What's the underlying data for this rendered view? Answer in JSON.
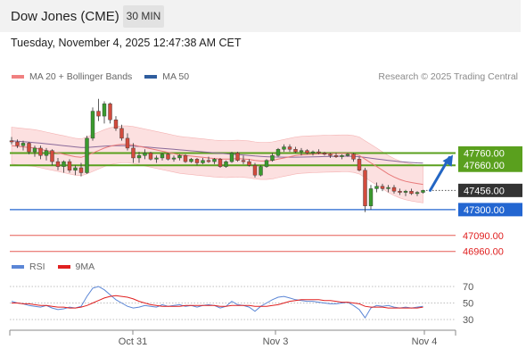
{
  "header": {
    "instrument": "Dow Jones (CME)",
    "period": "30 MIN"
  },
  "subtitle": "Tuesday, November 4, 2025 12:47:38 AM CET",
  "legend": {
    "items": [
      {
        "label": "MA 20 + Bollinger Bands",
        "color": "#f08080"
      },
      {
        "label": "MA 50",
        "color": "#2f5d9e"
      }
    ],
    "credit": "Research © 2025 Trading Central"
  },
  "rsi_legend": {
    "items": [
      {
        "label": "RSI",
        "color": "#5b86d6"
      },
      {
        "label": "9MA",
        "color": "#e02020"
      }
    ]
  },
  "colors": {
    "up": "#3a9a2e",
    "down": "#d24b3d",
    "resistance": "#5aa01e",
    "support": "#2366d1",
    "target": "#e55c55",
    "current": "#333333",
    "band": "#fbd6d6",
    "arrow": "#2366c4"
  },
  "price_labels": [
    {
      "text": "47760.00",
      "kind": "resistance"
    },
    {
      "text": "47660.00",
      "kind": "resistance"
    },
    {
      "text": "47456.00",
      "kind": "current"
    },
    {
      "text": "47300.00",
      "kind": "support"
    },
    {
      "text": "47090.00",
      "kind": "target"
    },
    {
      "text": "46960.00",
      "kind": "target"
    }
  ],
  "chart_data": [
    {
      "type": "candlestick",
      "title": "Dow Jones (CME) 30 MIN",
      "x_tick_labels": [
        "Oct 31",
        "Nov 3",
        "Nov 4"
      ],
      "ylim": [
        46900,
        48300
      ],
      "current_price": 47456,
      "resistance_levels": [
        47760,
        47660
      ],
      "support_levels": [
        47300
      ],
      "target_levels": [
        47090,
        46960
      ],
      "bias": "bullish",
      "ohlc": [
        [
          47860,
          47890,
          47830,
          47850
        ],
        [
          47850,
          47870,
          47800,
          47820
        ],
        [
          47820,
          47860,
          47780,
          47840
        ],
        [
          47840,
          47850,
          47750,
          47770
        ],
        [
          47770,
          47820,
          47730,
          47800
        ],
        [
          47800,
          47820,
          47710,
          47740
        ],
        [
          47740,
          47800,
          47700,
          47780
        ],
        [
          47780,
          47790,
          47660,
          47690
        ],
        [
          47690,
          47720,
          47620,
          47650
        ],
        [
          47650,
          47700,
          47600,
          47690
        ],
        [
          47690,
          47710,
          47600,
          47620
        ],
        [
          47620,
          47660,
          47580,
          47640
        ],
        [
          47640,
          47680,
          47570,
          47600
        ],
        [
          47600,
          47900,
          47590,
          47880
        ],
        [
          47880,
          48130,
          47860,
          48100
        ],
        [
          48100,
          48200,
          48020,
          48060
        ],
        [
          48060,
          48180,
          48000,
          48160
        ],
        [
          48160,
          48170,
          48000,
          48030
        ],
        [
          48030,
          48060,
          47940,
          47960
        ],
        [
          47960,
          47990,
          47860,
          47880
        ],
        [
          47880,
          47920,
          47780,
          47800
        ],
        [
          47800,
          47840,
          47680,
          47720
        ],
        [
          47720,
          47770,
          47680,
          47740
        ],
        [
          47740,
          47790,
          47710,
          47760
        ],
        [
          47760,
          47770,
          47700,
          47710
        ],
        [
          47710,
          47740,
          47680,
          47720
        ],
        [
          47720,
          47760,
          47700,
          47750
        ],
        [
          47750,
          47760,
          47700,
          47710
        ],
        [
          47710,
          47740,
          47690,
          47720
        ],
        [
          47720,
          47750,
          47700,
          47740
        ],
        [
          47740,
          47750,
          47680,
          47690
        ],
        [
          47690,
          47720,
          47680,
          47710
        ],
        [
          47710,
          47720,
          47660,
          47680
        ],
        [
          47680,
          47720,
          47670,
          47700
        ],
        [
          47700,
          47730,
          47680,
          47690
        ],
        [
          47690,
          47720,
          47670,
          47710
        ],
        [
          47710,
          47720,
          47640,
          47650
        ],
        [
          47650,
          47700,
          47640,
          47690
        ],
        [
          47690,
          47770,
          47680,
          47760
        ],
        [
          47760,
          47770,
          47690,
          47700
        ],
        [
          47700,
          47740,
          47670,
          47690
        ],
        [
          47690,
          47710,
          47650,
          47660
        ],
        [
          47660,
          47680,
          47560,
          47580
        ],
        [
          47580,
          47660,
          47570,
          47650
        ],
        [
          47650,
          47710,
          47640,
          47700
        ],
        [
          47700,
          47760,
          47690,
          47740
        ],
        [
          47740,
          47800,
          47730,
          47790
        ],
        [
          47790,
          47830,
          47770,
          47810
        ],
        [
          47810,
          47830,
          47770,
          47790
        ],
        [
          47790,
          47810,
          47760,
          47770
        ],
        [
          47770,
          47800,
          47740,
          47780
        ],
        [
          47780,
          47790,
          47750,
          47760
        ],
        [
          47760,
          47780,
          47740,
          47770
        ],
        [
          47770,
          47790,
          47750,
          47760
        ],
        [
          47760,
          47770,
          47740,
          47750
        ],
        [
          47750,
          47760,
          47720,
          47740
        ],
        [
          47740,
          47760,
          47720,
          47730
        ],
        [
          47730,
          47750,
          47710,
          47740
        ],
        [
          47740,
          47760,
          47730,
          47750
        ],
        [
          47750,
          47760,
          47690,
          47710
        ],
        [
          47710,
          47730,
          47610,
          47620
        ],
        [
          47620,
          47640,
          47280,
          47330
        ],
        [
          47330,
          47500,
          47300,
          47470
        ],
        [
          47470,
          47520,
          47440,
          47490
        ],
        [
          47490,
          47510,
          47450,
          47470
        ],
        [
          47470,
          47500,
          47440,
          47480
        ],
        [
          47480,
          47500,
          47430,
          47450
        ],
        [
          47450,
          47470,
          47420,
          47440
        ],
        [
          47440,
          47460,
          47410,
          47450
        ],
        [
          47450,
          47470,
          47420,
          47430
        ],
        [
          47430,
          47450,
          47410,
          47440
        ],
        [
          47440,
          47460,
          47430,
          47456
        ]
      ],
      "ma20": [
        47820,
        47815,
        47810,
        47805,
        47800,
        47790,
        47780,
        47770,
        47760,
        47750,
        47740,
        47730,
        47725,
        47740,
        47760,
        47780,
        47800,
        47815,
        47825,
        47830,
        47830,
        47825,
        47815,
        47805,
        47795,
        47785,
        47775,
        47765,
        47755,
        47745,
        47740,
        47735,
        47730,
        47725,
        47720,
        47715,
        47712,
        47710,
        47712,
        47715,
        47712,
        47708,
        47700,
        47695,
        47695,
        47700,
        47710,
        47720,
        47730,
        47740,
        47745,
        47748,
        47750,
        47752,
        47754,
        47755,
        47756,
        47757,
        47757,
        47752,
        47740,
        47710,
        47680,
        47650,
        47620,
        47590,
        47565,
        47545,
        47530,
        47520,
        47512,
        47505
      ],
      "ma50": [
        47860,
        47856,
        47852,
        47848,
        47844,
        47840,
        47835,
        47830,
        47825,
        47820,
        47815,
        47810,
        47805,
        47805,
        47808,
        47812,
        47816,
        47818,
        47819,
        47819,
        47818,
        47816,
        47813,
        47810,
        47806,
        47802,
        47798,
        47794,
        47790,
        47786,
        47782,
        47778,
        47774,
        47770,
        47766,
        47762,
        47758,
        47754,
        47750,
        47747,
        47744,
        47740,
        47736,
        47733,
        47730,
        47728,
        47727,
        47726,
        47726,
        47726,
        47727,
        47728,
        47729,
        47730,
        47731,
        47732,
        47733,
        47734,
        47734,
        47733,
        47730,
        47724,
        47718,
        47712,
        47706,
        47700,
        47695,
        47690,
        47686,
        47683,
        47680,
        47678
      ],
      "bb_width": 150,
      "rsi": {
        "ylim": [
          20,
          80
        ],
        "levels": [
          70,
          50,
          30
        ],
        "rsi": [
          52,
          50,
          49,
          47,
          46,
          45,
          47,
          44,
          42,
          43,
          45,
          44,
          46,
          58,
          68,
          70,
          66,
          60,
          54,
          50,
          46,
          44,
          45,
          47,
          46,
          45,
          48,
          46,
          47,
          48,
          46,
          47,
          45,
          47,
          48,
          47,
          44,
          46,
          52,
          48,
          47,
          45,
          40,
          46,
          50,
          54,
          57,
          58,
          56,
          54,
          53,
          52,
          52,
          51,
          50,
          49,
          49,
          50,
          51,
          47,
          42,
          32,
          44,
          47,
          46,
          47,
          45,
          44,
          45,
          44,
          45,
          46
        ],
        "ma9": [
          50,
          50,
          49,
          49,
          48,
          47,
          47,
          46,
          45,
          45,
          44,
          44,
          45,
          47,
          50,
          53,
          56,
          58,
          59,
          58,
          57,
          55,
          52,
          50,
          48,
          47,
          46,
          46,
          46,
          46,
          47,
          47,
          47,
          47,
          47,
          47,
          46,
          46,
          47,
          47,
          47,
          47,
          46,
          46,
          46,
          47,
          48,
          50,
          52,
          53,
          54,
          54,
          54,
          54,
          53,
          53,
          52,
          51,
          51,
          50,
          49,
          46,
          45,
          45,
          45,
          44,
          44,
          44,
          44,
          44,
          44,
          45
        ]
      }
    }
  ]
}
